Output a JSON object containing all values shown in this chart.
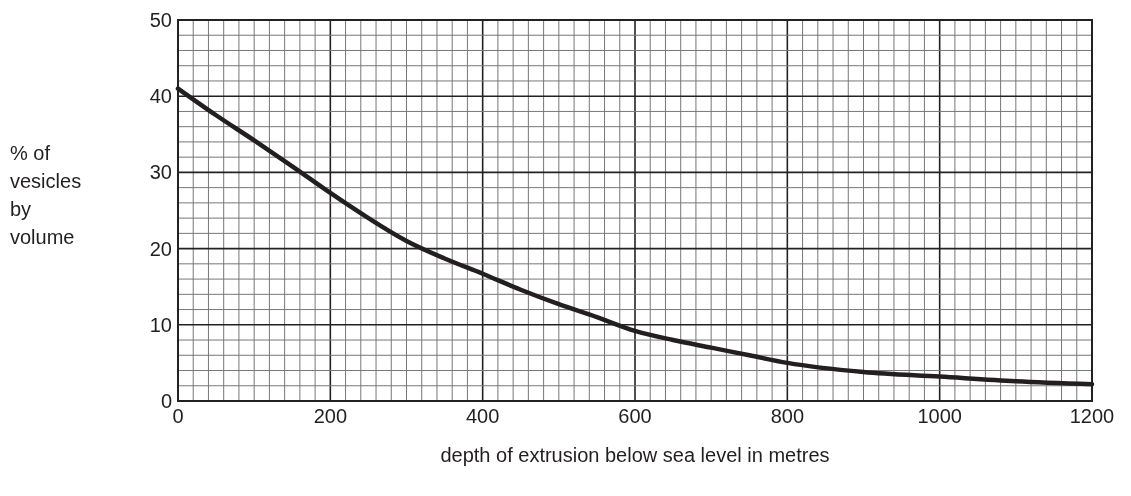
{
  "chart_data": {
    "type": "line",
    "xlabel": "depth of extrusion below sea level in metres",
    "ylabel": "% of vesicles by volume",
    "x": [
      0,
      50,
      100,
      150,
      200,
      250,
      300,
      350,
      400,
      450,
      500,
      550,
      600,
      650,
      700,
      750,
      800,
      900,
      1000,
      1100,
      1200
    ],
    "series": [
      {
        "color": "#231f20",
        "values": [
          41,
          37.5,
          34.2,
          30.8,
          27.3,
          24,
          21,
          18.7,
          16.7,
          14.6,
          12.7,
          11,
          9.2,
          8,
          7,
          6,
          5,
          3.8,
          3.2,
          2.6,
          2.2
        ]
      }
    ],
    "xlim": [
      0,
      1200
    ],
    "ylim": [
      0,
      50
    ],
    "xticks": [
      0,
      {
        "value": 20,
        "label": null
      },
      {
        "value": 40,
        "label": null
      },
      {
        "value": 60,
        "label": null
      },
      {
        "value": 80,
        "label": null
      },
      {
        "value": 100,
        "label": null
      },
      {
        "value": 120,
        "label": null
      },
      {
        "value": 140,
        "label": null
      },
      {
        "value": 160,
        "label": null
      },
      {
        "value": 180,
        "label": null
      },
      200,
      {
        "value": 220,
        "label": null
      },
      {
        "value": 240,
        "label": null
      },
      {
        "value": 260,
        "label": null
      },
      {
        "value": 280,
        "label": null
      },
      {
        "value": 300,
        "label": null
      },
      {
        "value": 320,
        "label": null
      },
      {
        "value": 340,
        "label": null
      },
      {
        "value": 360,
        "label": null
      },
      {
        "value": 380,
        "label": null
      },
      400,
      {
        "value": 420,
        "label": null
      },
      {
        "value": 440,
        "label": null
      },
      {
        "value": 460,
        "label": null
      },
      {
        "value": 480,
        "label": null
      },
      {
        "value": 500,
        "label": null
      },
      {
        "value": 520,
        "label": null
      },
      {
        "value": 540,
        "label": null
      },
      {
        "value": 560,
        "label": null
      },
      {
        "value": 580,
        "label": null
      },
      600,
      {
        "value": 620,
        "label": null
      },
      {
        "value": 640,
        "label": null
      },
      {
        "value": 660,
        "label": null
      },
      {
        "value": 680,
        "label": null
      },
      {
        "value": 700,
        "label": null
      },
      {
        "value": 720,
        "label": null
      },
      {
        "value": 740,
        "label": null
      },
      {
        "value": 760,
        "label": null
      },
      {
        "value": 780,
        "label": null
      },
      800,
      {
        "value": 820,
        "label": null
      },
      {
        "value": 840,
        "label": null
      },
      {
        "value": 860,
        "label": null
      },
      {
        "value": 880,
        "label": null
      },
      {
        "value": 900,
        "label": null
      },
      {
        "value": 920,
        "label": null
      },
      {
        "value": 940,
        "label": null
      },
      {
        "value": 960,
        "label": null
      },
      {
        "value": 980,
        "label": null
      },
      1000,
      {
        "value": 1020,
        "label": null
      },
      {
        "value": 1040,
        "label": null
      },
      {
        "value": 1060,
        "label": null
      },
      {
        "value": 1080,
        "label": null
      },
      {
        "value": 1100,
        "label": null
      },
      {
        "value": 1120,
        "label": null
      },
      {
        "value": 1140,
        "label": null
      },
      {
        "value": 1160,
        "label": null
      },
      {
        "value": 1180,
        "label": null
      },
      1200
    ],
    "yticks": [
      0,
      {
        "value": 2,
        "label": null
      },
      {
        "value": 4,
        "label": null
      },
      {
        "value": 6,
        "label": null
      },
      {
        "value": 8,
        "label": null
      },
      10,
      {
        "value": 12,
        "label": null
      },
      {
        "value": 14,
        "label": null
      },
      {
        "value": 16,
        "label": null
      },
      {
        "value": 18,
        "label": null
      },
      20,
      {
        "value": 22,
        "label": null
      },
      {
        "value": 24,
        "label": null
      },
      {
        "value": 26,
        "label": null
      },
      {
        "value": 28,
        "label": null
      },
      30,
      {
        "value": 32,
        "label": null
      },
      {
        "value": 34,
        "label": null
      },
      {
        "value": 36,
        "label": null
      },
      {
        "value": 38,
        "label": null
      },
      40,
      {
        "value": 42,
        "label": null
      },
      {
        "value": 44,
        "label": null
      },
      {
        "value": 46,
        "label": null
      },
      {
        "value": 48,
        "label": null
      },
      50
    ],
    "grid": true,
    "marker": "none",
    "line_style": "solid"
  }
}
